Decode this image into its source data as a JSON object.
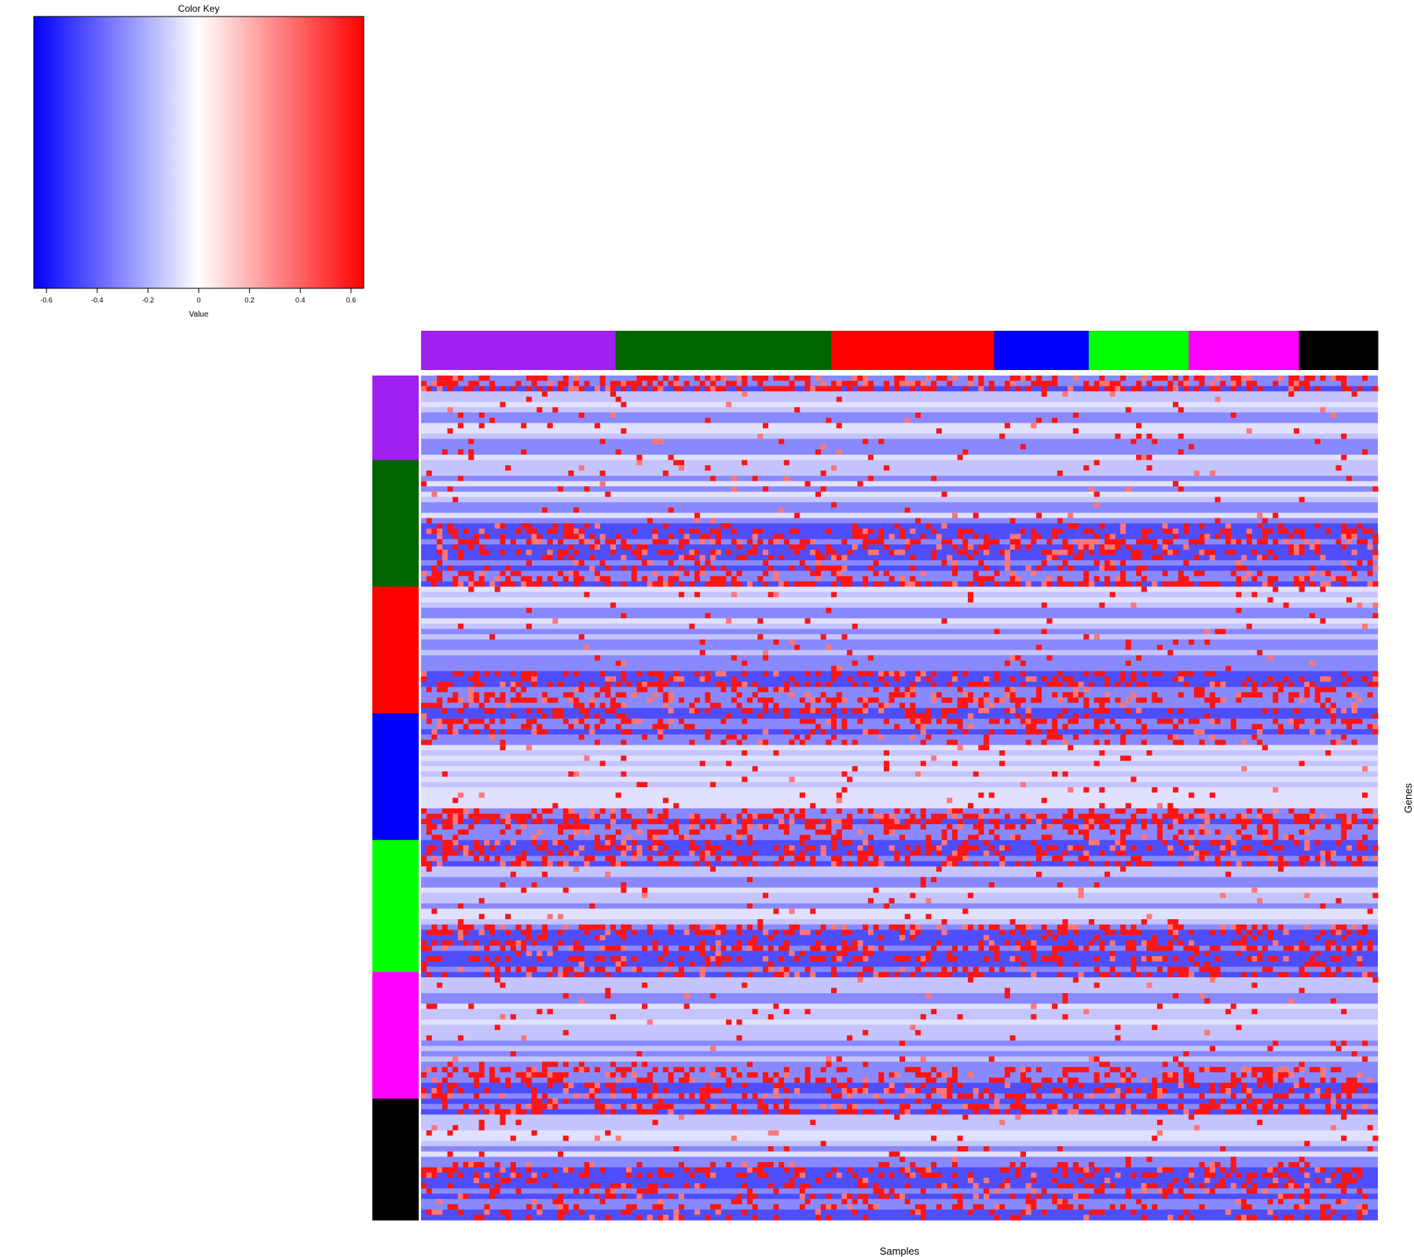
{
  "chart_data": [
    {
      "type": "colorbar",
      "title": "Color Key",
      "xlabel": "Value",
      "range": [
        -0.65,
        0.65
      ],
      "ticks": [
        -0.6,
        -0.4,
        -0.2,
        0,
        0.2,
        0.4,
        0.6
      ],
      "tick_labels": [
        "-0.6",
        "-0.4",
        "-0.2",
        "0",
        "0.2",
        "0.4",
        "0.6"
      ],
      "colormap": [
        "#0000ff",
        "#ffffff",
        "#ff0000"
      ]
    },
    {
      "type": "heatmap",
      "xlabel": "Samples",
      "ylabel": "Genes",
      "legend": "top-left",
      "grid": false,
      "n_samples": 182,
      "n_genes": 160,
      "group_colors": [
        "#a020f0",
        "#006400",
        "#ff0000",
        "#0000ff",
        "#00ff00",
        "#ff00ff",
        "#000000"
      ],
      "column_groups": [
        {
          "color": "#a020f0",
          "count": 37
        },
        {
          "color": "#006400",
          "count": 41
        },
        {
          "color": "#ff0000",
          "count": 31
        },
        {
          "color": "#0000ff",
          "count": 18
        },
        {
          "color": "#00ff00",
          "count": 19
        },
        {
          "color": "#ff00ff",
          "count": 21
        },
        {
          "color": "#000000",
          "count": 15
        }
      ],
      "row_groups": [
        {
          "color": "#a020f0",
          "count": 16
        },
        {
          "color": "#006400",
          "count": 24
        },
        {
          "color": "#ff0000",
          "count": 24
        },
        {
          "color": "#0000ff",
          "count": 24
        },
        {
          "color": "#00ff00",
          "count": 25
        },
        {
          "color": "#ff00ff",
          "count": 24
        },
        {
          "color": "#000000",
          "count": 23
        }
      ],
      "value_range": [
        -0.65,
        0.65
      ],
      "approximate_value_levels": {
        "background": [
          -0.45,
          -0.3,
          -0.15,
          -0.08
        ],
        "high": 0.6,
        "moderate": 0.35
      },
      "dense_row_bands": [
        {
          "start": 0,
          "end": 3,
          "strength": 0.9
        },
        {
          "start": 28,
          "end": 40,
          "strength": 0.85
        },
        {
          "start": 56,
          "end": 70,
          "strength": 0.8
        },
        {
          "start": 82,
          "end": 93,
          "strength": 0.85
        },
        {
          "start": 104,
          "end": 114,
          "strength": 0.85
        },
        {
          "start": 130,
          "end": 140,
          "strength": 0.7
        },
        {
          "start": 149,
          "end": 160,
          "strength": 0.6
        }
      ]
    }
  ]
}
